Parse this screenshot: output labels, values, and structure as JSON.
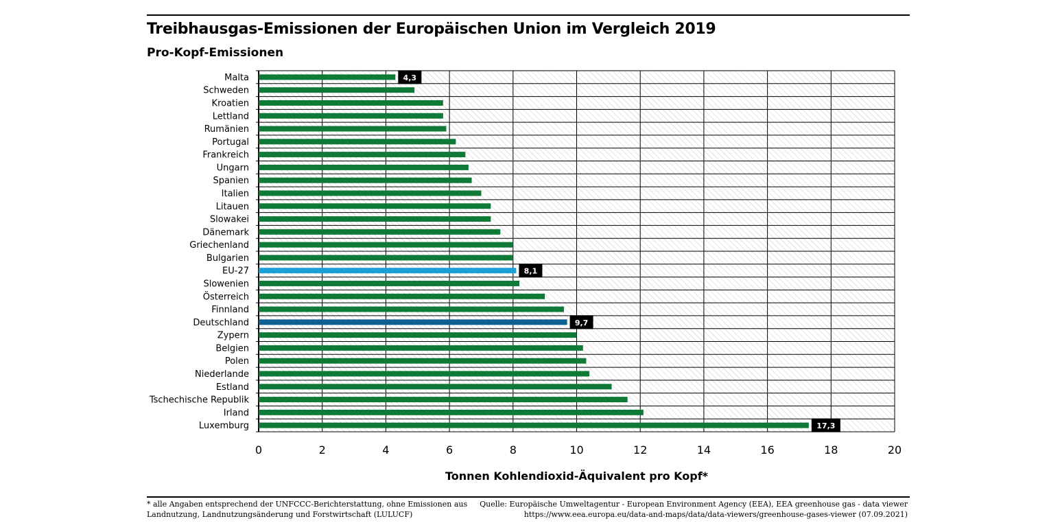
{
  "colors": {
    "bar": "#0f7a37",
    "eu_bar": "#1ba0d8",
    "germany_bar": "#0e5f93",
    "label_box": "#000000",
    "label_text": "#ffffff",
    "hatch": "#c8c8c8"
  },
  "chart_data": {
    "type": "bar",
    "orientation": "horizontal",
    "title": "Treibhausgas-Emissionen der Europäischen Union im Vergleich 2019",
    "subtitle": "Pro-Kopf-Emissionen",
    "xlabel": "Tonnen Kohlendioxid-Äquivalent pro Kopf*",
    "xlim": [
      0,
      20
    ],
    "xticks": [
      "0",
      "2",
      "4",
      "6",
      "8",
      "10",
      "12",
      "14",
      "16",
      "18",
      "20"
    ],
    "grid": true,
    "categories": [
      "Malta",
      "Schweden",
      "Kroatien",
      "Lettland",
      "Rumänien",
      "Portugal",
      "Frankreich",
      "Ungarn",
      "Spanien",
      "Italien",
      "Litauen",
      "Slowakei",
      "Dänemark",
      "Griechenland",
      "Bulgarien",
      "EU-27",
      "Slowenien",
      "Österreich",
      "Finnland",
      "Deutschland",
      "Zypern",
      "Belgien",
      "Polen",
      "Niederlande",
      "Estland",
      "Tschechische Republik",
      "Irland",
      "Luxemburg"
    ],
    "values": [
      4.3,
      4.9,
      5.8,
      5.8,
      5.9,
      6.2,
      6.5,
      6.6,
      6.7,
      7.0,
      7.3,
      7.3,
      7.6,
      8.0,
      8.0,
      8.1,
      8.2,
      9.0,
      9.6,
      9.7,
      10.0,
      10.2,
      10.3,
      10.4,
      11.1,
      11.6,
      12.1,
      17.3
    ],
    "highlight": {
      "EU-27": "eu_bar",
      "Deutschland": "germany_bar"
    },
    "data_labels": [
      {
        "category": "Malta",
        "text": "4,3"
      },
      {
        "category": "EU-27",
        "text": "8,1"
      },
      {
        "category": "Deutschland",
        "text": "9,7"
      },
      {
        "category": "Luxemburg",
        "text": "17,3"
      }
    ]
  },
  "footnote": "* alle Angaben entsprechend der UNFCCC-Berichterstattung, ohne Emissionen aus Landnutzung, Landnutzungsänderung und Forstwirtschaft (LULUCF)",
  "source": {
    "line1": "Quelle: Europäische Umweltagentur - European Environment Agency (EEA), EEA greenhouse gas - data viewer",
    "line2": "https://www.eea.europa.eu/data-and-maps/data/data-viewers/greenhouse-gases-viewer (07.09.2021)"
  }
}
